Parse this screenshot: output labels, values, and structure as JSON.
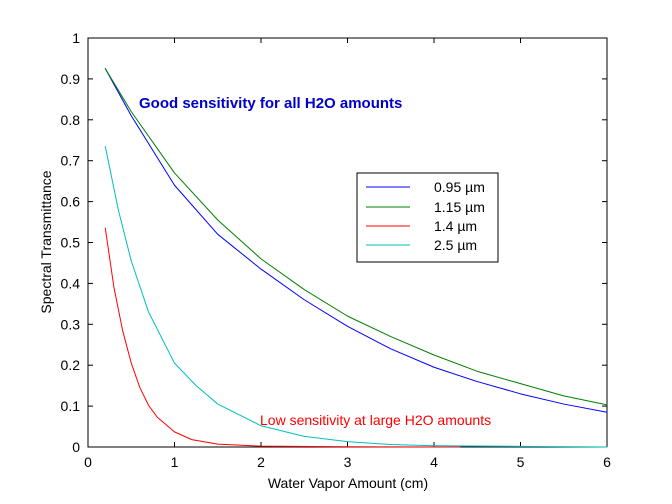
{
  "chart_data": {
    "type": "line",
    "title": "",
    "xlabel": "Water Vapor Amount (cm)",
    "ylabel": "Spectral Transmittance",
    "xlim": [
      0,
      6
    ],
    "ylim": [
      0,
      1
    ],
    "x_ticks": [
      0,
      1,
      2,
      3,
      4,
      5,
      6
    ],
    "y_ticks": [
      0,
      0.1,
      0.2,
      0.3,
      0.4,
      0.5,
      0.6,
      0.7,
      0.8,
      0.9,
      1
    ],
    "x_tick_labels": [
      "0",
      "1",
      "2",
      "3",
      "4",
      "5",
      "6"
    ],
    "y_tick_labels": [
      "0",
      "0.1",
      "0.2",
      "0.3",
      "0.4",
      "0.5",
      "0.6",
      "0.7",
      "0.8",
      "0.9",
      "1"
    ],
    "grid": false,
    "legend_position": "center-right",
    "series": [
      {
        "name": "0.95 µm",
        "color": "#0000ff",
        "x": [
          0.2,
          0.5,
          1.0,
          1.5,
          2.0,
          2.5,
          3.0,
          3.5,
          4.0,
          4.5,
          5.0,
          5.5,
          6.0
        ],
        "y": [
          0.925,
          0.81,
          0.64,
          0.52,
          0.435,
          0.36,
          0.295,
          0.24,
          0.195,
          0.16,
          0.13,
          0.105,
          0.085
        ]
      },
      {
        "name": "1.15 µm",
        "color": "#008000",
        "x": [
          0.2,
          0.5,
          1.0,
          1.5,
          2.0,
          2.5,
          3.0,
          3.5,
          4.0,
          4.5,
          5.0,
          5.5,
          6.0
        ],
        "y": [
          0.925,
          0.82,
          0.67,
          0.555,
          0.46,
          0.385,
          0.32,
          0.27,
          0.225,
          0.185,
          0.155,
          0.125,
          0.103
        ]
      },
      {
        "name": "1.4 µm",
        "color": "#ff0000",
        "x": [
          0.2,
          0.3,
          0.4,
          0.5,
          0.6,
          0.7,
          0.8,
          1.0,
          1.2,
          1.5,
          2.0,
          3.0,
          4.3
        ],
        "y": [
          0.535,
          0.39,
          0.285,
          0.205,
          0.145,
          0.102,
          0.073,
          0.037,
          0.018,
          0.007,
          0.002,
          0.0005,
          0.0
        ]
      },
      {
        "name": "2.5 µm",
        "color": "#00bfbf",
        "x": [
          0.2,
          0.35,
          0.5,
          0.7,
          1.0,
          1.25,
          1.5,
          2.0,
          2.5,
          3.0,
          3.5,
          4.0,
          6.0
        ],
        "y": [
          0.735,
          0.58,
          0.455,
          0.33,
          0.205,
          0.15,
          0.105,
          0.052,
          0.026,
          0.013,
          0.006,
          0.003,
          0.0
        ]
      }
    ],
    "annotations": [
      {
        "text": "Good sensitivity for all H2O amounts",
        "color": "#0000cc",
        "bold": true
      },
      {
        "text": "Low sensitivity at large H2O amounts",
        "color": "#ff0000",
        "bold": false
      }
    ]
  }
}
